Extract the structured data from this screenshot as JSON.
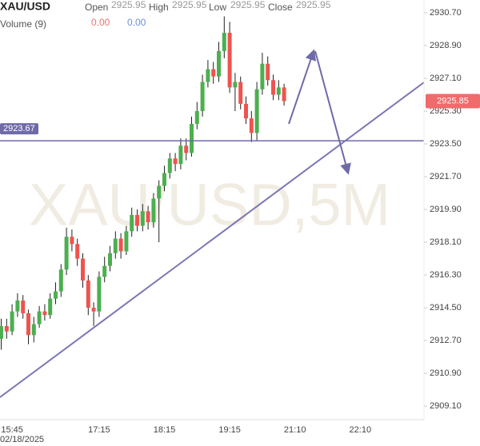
{
  "chart_data": {
    "type": "candlestick",
    "title": "XAU/USD",
    "header": {
      "open_label": "Open",
      "open": 2925.95,
      "high_label": "High",
      "high": 2925.95,
      "low_label": "Low",
      "low": 2925.95,
      "close_label": "Close",
      "close": 2925.95
    },
    "volume": {
      "label": "Volume (9)",
      "values": [
        "0.00",
        "0.00"
      ],
      "colors": [
        "#e57373",
        "#6a8fd8"
      ]
    },
    "watermark": "XAU/USD,5M",
    "date_label": "02/18/2025",
    "categories": [
      null,
      null,
      "15:45",
      null,
      null,
      null,
      null,
      null,
      null,
      null,
      null,
      null,
      null,
      null,
      null,
      null,
      null,
      null,
      "17:15",
      null,
      null,
      null,
      null,
      null,
      null,
      null,
      null,
      null,
      null,
      null,
      "18:15",
      null,
      null,
      null,
      null,
      null,
      null,
      null,
      null,
      null,
      null,
      null,
      "19:15",
      null,
      null,
      null,
      null,
      null,
      null,
      null,
      null,
      null,
      null,
      null,
      "21:10",
      null,
      null,
      null,
      null,
      null,
      null,
      null,
      null,
      null,
      null,
      null,
      "22:10"
    ],
    "open": [
      2912.8,
      2913.5,
      2913.2,
      2914.3,
      2914.9,
      2914.2,
      2913.0,
      2913.6,
      2914.3,
      2914.1,
      2915.0,
      2915.4,
      2916.6,
      2918.4,
      2918.0,
      2917.2,
      2916.0,
      2914.5,
      2914.3,
      2916.2,
      2916.8,
      2917.5,
      2918.3,
      2917.6,
      2918.7,
      2919.6,
      2919.0,
      2919.8,
      2919.2,
      2920.5,
      2921.2,
      2921.9,
      2922.7,
      2922.4,
      2923.4,
      2923.0,
      2924.6,
      2925.3,
      2926.9,
      2927.6,
      2927.2,
      2928.6,
      2929.6,
      2926.6,
      2926.9,
      2925.7,
      2924.9,
      2924.1,
      2926.5,
      2927.9,
      2927.0,
      2926.2,
      2926.6,
      null,
      null,
      null,
      null,
      null,
      null,
      null,
      null,
      null,
      null,
      null,
      null,
      null,
      null
    ],
    "high": [
      2913.9,
      2913.9,
      2914.7,
      2915.3,
      2915.2,
      2914.4,
      2914.0,
      2914.6,
      2914.7,
      2915.3,
      2915.9,
      2916.9,
      2918.9,
      2918.8,
      2918.3,
      2917.5,
      2916.3,
      2914.8,
      2916.5,
      2917.3,
      2917.9,
      2918.7,
      2918.6,
      2919.0,
      2920.0,
      2919.9,
      2920.2,
      2920.1,
      2920.8,
      2921.5,
      2922.3,
      2923.0,
      2923.0,
      2923.8,
      2923.8,
      2925.0,
      2925.8,
      2927.3,
      2928.1,
      2928.0,
      2929.1,
      2930.5,
      2930.2,
      2927.4,
      2927.2,
      2926.1,
      2925.3,
      2926.9,
      2928.5,
      2928.3,
      2927.3,
      2927.0,
      2926.8,
      null,
      null,
      null,
      null,
      null,
      null,
      null,
      null,
      null,
      null,
      null,
      null,
      null,
      null
    ],
    "low": [
      2912.2,
      2912.8,
      2913.0,
      2914.0,
      2913.9,
      2912.5,
      2912.6,
      2913.4,
      2913.8,
      2913.9,
      2914.7,
      2915.1,
      2916.3,
      2917.6,
      2916.8,
      2915.6,
      2914.1,
      2913.5,
      2914.0,
      2915.9,
      2916.5,
      2917.2,
      2917.2,
      2917.4,
      2918.4,
      2918.7,
      2918.7,
      2918.8,
      2918.9,
      2918.1,
      2920.9,
      2921.6,
      2922.0,
      2922.1,
      2922.6,
      2922.8,
      2924.3,
      2925.0,
      2926.6,
      2926.8,
      2926.9,
      2928.2,
      2926.3,
      2925.3,
      2925.4,
      2924.6,
      2923.6,
      2923.7,
      2926.2,
      2926.7,
      2925.9,
      2925.9,
      2925.6,
      null,
      null,
      null,
      null,
      null,
      null,
      null,
      null,
      null,
      null,
      null,
      null,
      null,
      null
    ],
    "close": [
      2913.5,
      2913.2,
      2914.3,
      2914.9,
      2914.2,
      2913.0,
      2913.6,
      2914.3,
      2914.1,
      2915.0,
      2915.4,
      2916.6,
      2918.4,
      2918.0,
      2917.2,
      2916.0,
      2914.5,
      2914.3,
      2916.2,
      2916.8,
      2917.5,
      2918.3,
      2917.6,
      2918.7,
      2919.6,
      2919.0,
      2919.8,
      2919.2,
      2920.5,
      2921.2,
      2921.9,
      2922.7,
      2922.4,
      2923.4,
      2923.0,
      2924.6,
      2925.3,
      2926.9,
      2927.6,
      2927.2,
      2928.6,
      2929.6,
      2926.6,
      2926.9,
      2925.7,
      2924.9,
      2924.1,
      2926.5,
      2927.9,
      2927.0,
      2926.2,
      2926.6,
      2925.85,
      null,
      null,
      null,
      null,
      null,
      null,
      null,
      null,
      null,
      null,
      null,
      null,
      null,
      null
    ],
    "up_color": "#4caf50",
    "down_color": "#ef5350",
    "ylim": [
      2908.36,
      2931.4
    ],
    "yticks": [
      {
        "value": 2909.1,
        "label": "2909.10"
      },
      {
        "value": 2910.9,
        "label": "2910.90"
      },
      {
        "value": 2912.7,
        "label": "2912.70"
      },
      {
        "value": 2914.5,
        "label": "2914.50"
      },
      {
        "value": 2916.3,
        "label": "2916.30"
      },
      {
        "value": 2918.1,
        "label": "2918.10"
      },
      {
        "value": 2919.9,
        "label": "2919.90"
      },
      {
        "value": 2921.7,
        "label": "2921.70"
      },
      {
        "value": 2923.5,
        "label": "2923.50"
      },
      {
        "value": 2925.3,
        "label": "2925.30"
      },
      {
        "value": 2927.1,
        "label": "2927.10"
      },
      {
        "value": 2928.9,
        "label": "2928.90"
      },
      {
        "value": 2930.7,
        "label": "2930.70"
      }
    ],
    "horizontal_line": {
      "value": 2923.67,
      "color": "#6f6aa8"
    },
    "last_price": {
      "value": 2925.85,
      "color": "#f06b6b"
    }
  }
}
